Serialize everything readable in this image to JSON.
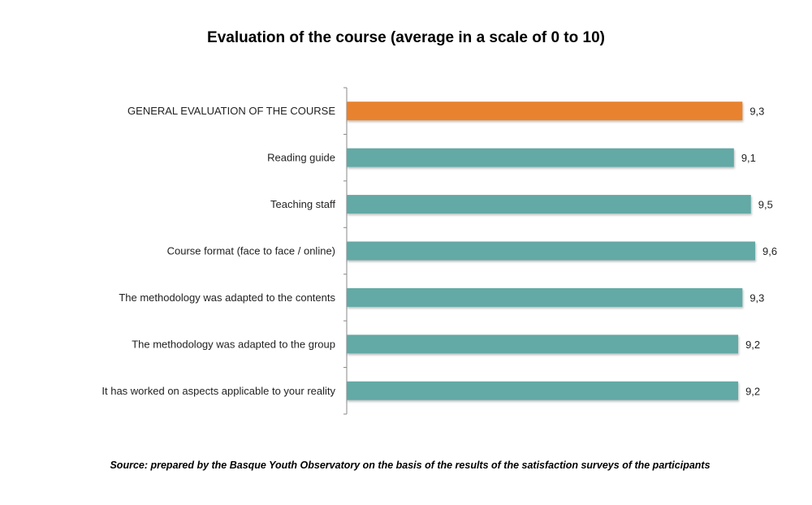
{
  "chart_data": {
    "type": "bar",
    "orientation": "horizontal",
    "title": "Evaluation of the course (average in a scale of 0 to 10)",
    "categories": [
      "GENERAL EVALUATION OF THE COURSE",
      "Reading guide",
      "Teaching staff",
      "Course format (face to face / online)",
      "The methodology was adapted to the contents",
      "The methodology was adapted to the group",
      "It has worked on aspects applicable to your reality"
    ],
    "values": [
      9.3,
      9.1,
      9.5,
      9.6,
      9.3,
      9.2,
      9.2
    ],
    "data_labels": [
      "9,3",
      "9,1",
      "9,5",
      "9,6",
      "9,3",
      "9,2",
      "9,2"
    ],
    "colors": [
      "#E8822E",
      "#63A9A6",
      "#63A9A6",
      "#63A9A6",
      "#63A9A6",
      "#63A9A6",
      "#63A9A6"
    ],
    "xlim": [
      0,
      10
    ],
    "grid": false,
    "legend": "none"
  },
  "source": "Source: prepared by the Basque Youth Observatory on the basis of the results of the satisfaction surveys of the participants"
}
